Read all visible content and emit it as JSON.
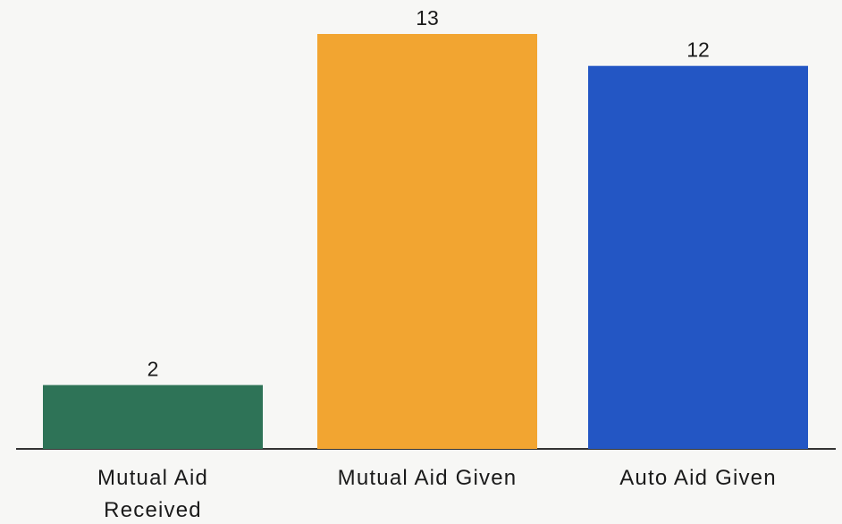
{
  "chart_data": {
    "type": "bar",
    "categories": [
      "Mutual Aid Received",
      "Mutual Aid Given",
      "Auto Aid Given"
    ],
    "category_lines": [
      [
        "Mutual Aid",
        "Received"
      ],
      [
        "Mutual Aid Given"
      ],
      [
        "Auto Aid Given"
      ]
    ],
    "values": [
      2,
      13,
      12
    ],
    "data_labels": [
      "2",
      "13",
      "12"
    ],
    "colors": [
      "#2e7357",
      "#f2a531",
      "#2356c4"
    ],
    "title": "",
    "xlabel": "",
    "ylabel": "",
    "ylim": [
      0,
      13
    ],
    "grid": false,
    "legend": "none"
  }
}
